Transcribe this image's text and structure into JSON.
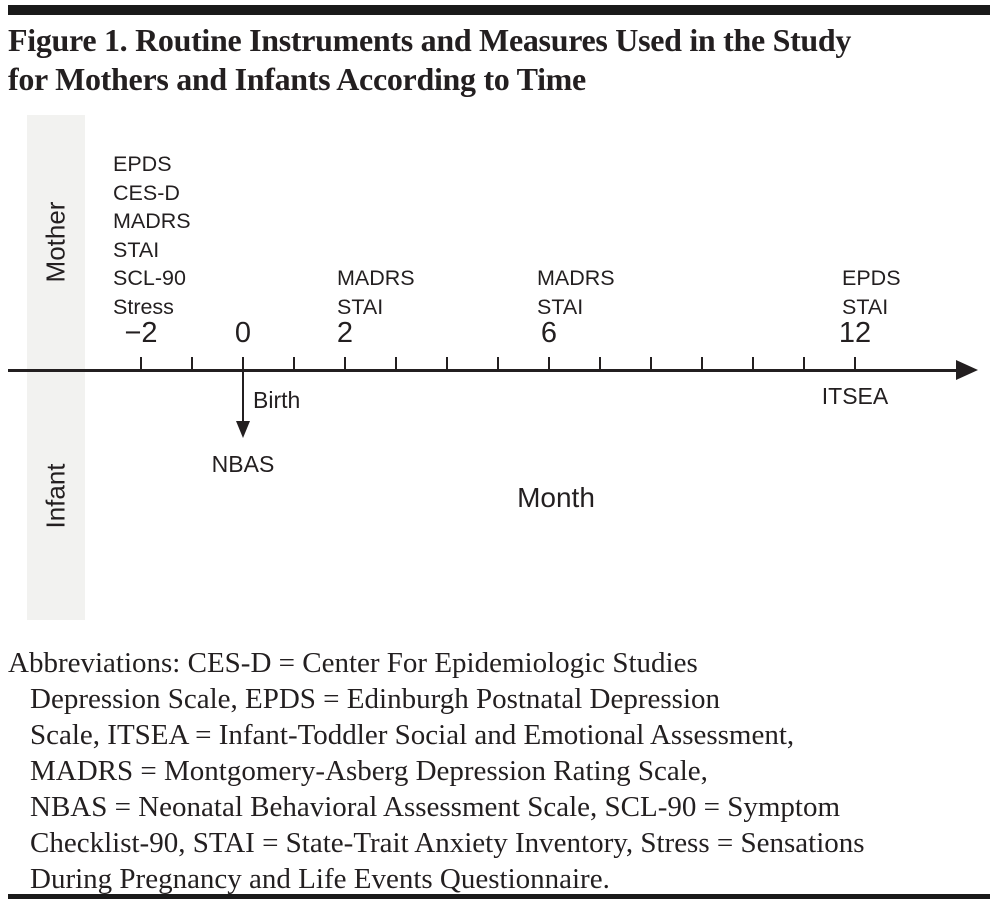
{
  "figure": {
    "title_line1": "Figure 1. Routine Instruments and Measures Used in the Study",
    "title_line2": "for Mothers and Infants According to Time"
  },
  "timeline": {
    "rows": [
      {
        "label": "Mother"
      },
      {
        "label": "Infant"
      }
    ],
    "axis_label": "Month",
    "birth_label": "Birth",
    "tick_months": [
      -2,
      -1,
      0,
      1,
      2,
      3,
      4,
      5,
      6,
      7,
      8,
      9,
      10,
      11,
      12
    ],
    "numbered_ticks": [
      {
        "month": -2,
        "label": "−2"
      },
      {
        "month": 0,
        "label": "0"
      },
      {
        "month": 2,
        "label": "2"
      },
      {
        "month": 6,
        "label": "6"
      },
      {
        "month": 12,
        "label": "12"
      }
    ],
    "mother_measures": [
      {
        "month": -2,
        "items": [
          "EPDS",
          "CES-D",
          "MADRS",
          "STAI",
          "SCL-90",
          "Stress"
        ]
      },
      {
        "month": 2,
        "items": [
          "MADRS",
          "STAI"
        ]
      },
      {
        "month": 6,
        "items": [
          "MADRS",
          "STAI"
        ]
      },
      {
        "month": 12,
        "items": [
          "EPDS",
          "STAI"
        ]
      }
    ],
    "infant_measures": [
      {
        "month": 0,
        "label": "NBAS"
      },
      {
        "month": 12,
        "label": "ITSEA"
      }
    ]
  },
  "abbreviations": {
    "lines": [
      "Abbreviations: CES-D = Center For Epidemiologic Studies",
      "Depression Scale, EPDS = Edinburgh Postnatal Depression",
      "Scale, ITSEA = Infant-Toddler Social and Emotional Assessment,",
      "MADRS = Montgomery-Asberg Depression Rating Scale,",
      "NBAS = Neonatal Behavioral Assessment Scale, SCL-90 = Symptom",
      "Checklist-90, STAI = State-Trait Anxiety Inventory, Stress = Sensations",
      "During Pregnancy and Life Events Questionnaire."
    ]
  },
  "colors": {
    "ink": "#231f20",
    "rule": "#1a1a1a",
    "row_band": "#f2f2f0"
  }
}
